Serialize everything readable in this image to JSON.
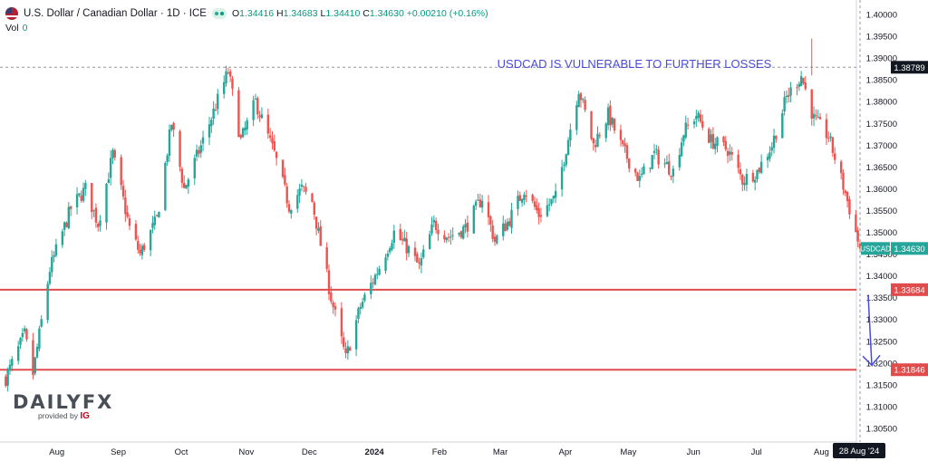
{
  "header": {
    "symbol": "U.S. Dollar / Canadian Dollar · 1D · ICE",
    "ohlc": [
      {
        "label": "O",
        "value": "1.34416"
      },
      {
        "label": "H",
        "value": "1.34683"
      },
      {
        "label": "L",
        "value": "1.34410"
      },
      {
        "label": "C",
        "value": "1.34630"
      }
    ],
    "change": "+0.00210 (+0.16%)",
    "vol_label": "Vol",
    "vol_value": "0"
  },
  "logo": {
    "brand": "DAILYFX",
    "provided_by": "provided by",
    "provider": "IG"
  },
  "colors": {
    "up": "#26a69a",
    "down": "#ef5350",
    "level_line": "#e04b4b",
    "arrow": "#4a4cd9",
    "annotation": "#4a4cd9",
    "ticker_badge": "#26a69a"
  },
  "chart_data": {
    "type": "candlestick",
    "title": "USDCAD IS VULNERABLE TO FURTHER LOSSES",
    "y_ticks": [
      "1.40000",
      "1.39500",
      "1.39000",
      "1.38500",
      "1.38000",
      "1.37500",
      "1.37000",
      "1.36500",
      "1.36000",
      "1.35500",
      "1.35000",
      "1.34500",
      "1.34000",
      "1.33500",
      "1.33000",
      "1.32500",
      "1.32000",
      "1.31500",
      "1.31000",
      "1.30500"
    ],
    "ylim": [
      1.3025,
      1.4025
    ],
    "x_ticks": [
      "Aug",
      "Sep",
      "Oct",
      "Nov",
      "Dec",
      "2024",
      "Feb",
      "Mar",
      "Apr",
      "May",
      "Jun",
      "Jul",
      "Aug"
    ],
    "x_tick_bold": "2024",
    "x_highlight_label": "28 Aug '24",
    "grid": false,
    "horizontal_levels": [
      {
        "value": 1.33684,
        "label": "1.33684",
        "style": "solid"
      },
      {
        "value": 1.31846,
        "label": "1.31846",
        "style": "solid"
      },
      {
        "value": 1.38789,
        "label": "1.38789",
        "style": "dashed"
      }
    ],
    "price_marker": {
      "label": "USDCAD",
      "value": 1.3463,
      "text": "1.34630"
    },
    "arrow": {
      "direction": "down",
      "from": 1.3355,
      "to": 1.3195
    },
    "path_points": [
      {
        "d": "2023-07-18",
        "v": 1.3165
      },
      {
        "d": "2023-07-27",
        "v": 1.3265
      },
      {
        "d": "2023-07-31",
        "v": 1.3175
      },
      {
        "d": "2023-08-08",
        "v": 1.3415
      },
      {
        "d": "2023-08-18",
        "v": 1.3555
      },
      {
        "d": "2023-08-25",
        "v": 1.36
      },
      {
        "d": "2023-08-31",
        "v": 1.352
      },
      {
        "d": "2023-09-07",
        "v": 1.368
      },
      {
        "d": "2023-09-15",
        "v": 1.351
      },
      {
        "d": "2023-09-20",
        "v": 1.345
      },
      {
        "d": "2023-09-28",
        "v": 1.353
      },
      {
        "d": "2023-10-05",
        "v": 1.375
      },
      {
        "d": "2023-10-11",
        "v": 1.36
      },
      {
        "d": "2023-10-20",
        "v": 1.371
      },
      {
        "d": "2023-11-01",
        "v": 1.387
      },
      {
        "d": "2023-11-07",
        "v": 1.371
      },
      {
        "d": "2023-11-14",
        "v": 1.38
      },
      {
        "d": "2023-11-23",
        "v": 1.368
      },
      {
        "d": "2023-11-30",
        "v": 1.356
      },
      {
        "d": "2023-12-06",
        "v": 1.36
      },
      {
        "d": "2023-12-11",
        "v": 1.357
      },
      {
        "d": "2023-12-20",
        "v": 1.335
      },
      {
        "d": "2023-12-27",
        "v": 1.321
      },
      {
        "d": "2024-01-03",
        "v": 1.333
      },
      {
        "d": "2024-01-12",
        "v": 1.342
      },
      {
        "d": "2024-01-19",
        "v": 1.35
      },
      {
        "d": "2024-01-26",
        "v": 1.346
      },
      {
        "d": "2024-01-31",
        "v": 1.342
      },
      {
        "d": "2024-02-07",
        "v": 1.352
      },
      {
        "d": "2024-02-14",
        "v": 1.349
      },
      {
        "d": "2024-02-22",
        "v": 1.351
      },
      {
        "d": "2024-03-01",
        "v": 1.358
      },
      {
        "d": "2024-03-07",
        "v": 1.348
      },
      {
        "d": "2024-03-14",
        "v": 1.353
      },
      {
        "d": "2024-03-21",
        "v": 1.36
      },
      {
        "d": "2024-03-28",
        "v": 1.354
      },
      {
        "d": "2024-04-05",
        "v": 1.358
      },
      {
        "d": "2024-04-16",
        "v": 1.383
      },
      {
        "d": "2024-04-23",
        "v": 1.37
      },
      {
        "d": "2024-04-30",
        "v": 1.377
      },
      {
        "d": "2024-05-07",
        "v": 1.369
      },
      {
        "d": "2024-05-15",
        "v": 1.362
      },
      {
        "d": "2024-05-22",
        "v": 1.368
      },
      {
        "d": "2024-05-31",
        "v": 1.364
      },
      {
        "d": "2024-06-05",
        "v": 1.373
      },
      {
        "d": "2024-06-11",
        "v": 1.377
      },
      {
        "d": "2024-06-18",
        "v": 1.371
      },
      {
        "d": "2024-06-26",
        "v": 1.369
      },
      {
        "d": "2024-07-03",
        "v": 1.362
      },
      {
        "d": "2024-07-10",
        "v": 1.364
      },
      {
        "d": "2024-07-17",
        "v": 1.37
      },
      {
        "d": "2024-07-24",
        "v": 1.381
      },
      {
        "d": "2024-07-31",
        "v": 1.386
      },
      {
        "d": "2024-08-06",
        "v": 1.376
      },
      {
        "d": "2024-08-13",
        "v": 1.372
      },
      {
        "d": "2024-08-21",
        "v": 1.359
      },
      {
        "d": "2024-08-28",
        "v": 1.3463
      }
    ]
  }
}
